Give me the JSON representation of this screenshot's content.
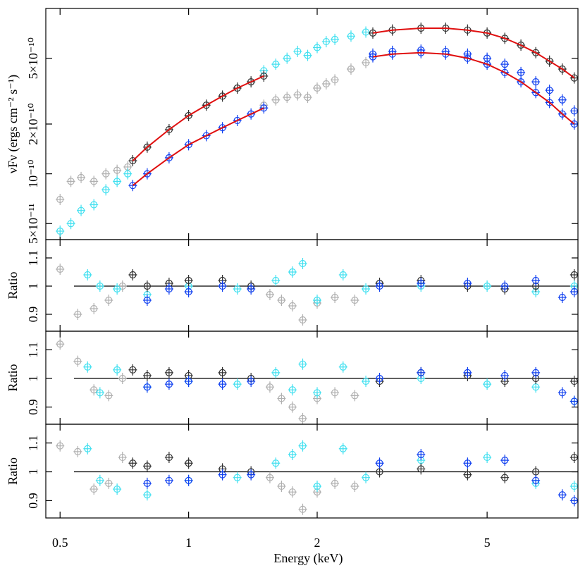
{
  "chart_data": [
    {
      "type": "scatter",
      "ylabel": "νFν (ergs cm⁻² s⁻¹)",
      "xlog": true,
      "ylog": true,
      "xlim": [
        0.463,
        8.16
      ],
      "ylim": [
        4e-11,
        1e-09
      ],
      "yticks": [
        {
          "value": 5e-11,
          "label": "5×10⁻¹¹"
        },
        {
          "value": 1e-10,
          "label": "10⁻¹⁰"
        },
        {
          "value": 2e-10,
          "label": "2×10⁻¹⁰"
        },
        {
          "value": 5e-10,
          "label": "5×10⁻¹⁰"
        }
      ],
      "series": [
        {
          "color": "#b0b0b0",
          "x": [
            0.5,
            0.53,
            0.56,
            0.6,
            0.64,
            0.68,
            0.72,
            1.5,
            1.6,
            1.7,
            1.8,
            1.9,
            2.0,
            2.1,
            2.2,
            2.4,
            2.6
          ],
          "values": [
            7e-11,
            9e-11,
            9.5e-11,
            9e-11,
            1e-10,
            1.05e-10,
            1.1e-10,
            2.6e-10,
            2.8e-10,
            2.9e-10,
            3e-10,
            2.9e-10,
            3.3e-10,
            3.5e-10,
            3.7e-10,
            4.3e-10,
            4.7e-10
          ]
        },
        {
          "color": "#40e0f0",
          "x": [
            0.5,
            0.53,
            0.56,
            0.6,
            0.64,
            0.68,
            0.72,
            1.5,
            1.6,
            1.7,
            1.8,
            1.9,
            2.0,
            2.1,
            2.2,
            2.4,
            2.6
          ],
          "values": [
            4.5e-11,
            5e-11,
            6e-11,
            6.5e-11,
            8e-11,
            9e-11,
            1e-10,
            4.2e-10,
            4.6e-10,
            5e-10,
            5.5e-10,
            5.2e-10,
            5.8e-10,
            6.3e-10,
            6.5e-10,
            6.8e-10,
            7.2e-10
          ]
        },
        {
          "color": "#303030",
          "x": [
            0.74,
            0.8,
            0.9,
            1.0,
            1.1,
            1.2,
            1.3,
            1.4,
            1.5,
            2.7,
            3,
            3.5,
            4,
            4.5,
            5,
            5.5,
            6,
            6.5,
            7,
            7.5,
            8
          ],
          "values": [
            1.2e-10,
            1.45e-10,
            1.85e-10,
            2.25e-10,
            2.6e-10,
            2.95e-10,
            3.3e-10,
            3.6e-10,
            3.9e-10,
            7.1e-10,
            7.4e-10,
            7.6e-10,
            7.6e-10,
            7.4e-10,
            7.1e-10,
            6.6e-10,
            6e-10,
            5.4e-10,
            4.8e-10,
            4.3e-10,
            3.8e-10
          ]
        },
        {
          "color": "#1040f0",
          "x": [
            0.74,
            0.8,
            0.9,
            1.0,
            1.1,
            1.2,
            1.3,
            1.4,
            1.5,
            2.7,
            3,
            3.5,
            4,
            4.5,
            5,
            5.5,
            6,
            6.5,
            7,
            7.5,
            8
          ],
          "values": [
            8.5e-11,
            1e-10,
            1.25e-10,
            1.5e-10,
            1.7e-10,
            1.9e-10,
            2.1e-10,
            2.3e-10,
            2.5e-10,
            5.1e-10,
            5.3e-10,
            5.4e-10,
            5.3e-10,
            5e-10,
            4.6e-10,
            4.1e-10,
            3.6e-10,
            3.1e-10,
            2.7e-10,
            2.3e-10,
            2e-10
          ]
        },
        {
          "color": "#1040f0",
          "x": [
            2.7,
            3,
            3.5,
            4,
            4.5,
            5,
            5.5,
            6,
            6.5,
            7,
            7.5,
            8
          ],
          "values": [
            5.3e-10,
            5.5e-10,
            5.6e-10,
            5.5e-10,
            5.3e-10,
            5e-10,
            4.6e-10,
            4.1e-10,
            3.6e-10,
            3.2e-10,
            2.8e-10,
            2.4e-10
          ]
        },
        {
          "color": "#e01010",
          "style": "line",
          "x": [
            0.74,
            0.8,
            0.9,
            1.0,
            1.1,
            1.2,
            1.3,
            1.4,
            1.5,
            2.0,
            2.7,
            3,
            3.5,
            4,
            4.5,
            5,
            5.5,
            6,
            6.5,
            7,
            7.5,
            8
          ],
          "values": [
            1.2e-10,
            1.45e-10,
            1.85e-10,
            2.25e-10,
            2.6e-10,
            2.95e-10,
            3.3e-10,
            3.6e-10,
            3.9e-10,
            null,
            7.1e-10,
            7.4e-10,
            7.6e-10,
            7.6e-10,
            7.4e-10,
            7.1e-10,
            6.6e-10,
            6e-10,
            5.4e-10,
            4.8e-10,
            4.3e-10,
            3.8e-10
          ]
        },
        {
          "color": "#e01010",
          "style": "line",
          "x": [
            0.74,
            0.8,
            0.9,
            1.0,
            1.1,
            1.2,
            1.3,
            1.4,
            1.5,
            2.0,
            2.7,
            3,
            3.5,
            4,
            4.5,
            5,
            5.5,
            6,
            6.5,
            7,
            7.5,
            8
          ],
          "values": [
            8.5e-11,
            1e-10,
            1.25e-10,
            1.5e-10,
            1.7e-10,
            1.9e-10,
            2.1e-10,
            2.3e-10,
            2.5e-10,
            null,
            5.1e-10,
            5.3e-10,
            5.4e-10,
            5.3e-10,
            5e-10,
            4.6e-10,
            4.1e-10,
            3.6e-10,
            3.1e-10,
            2.7e-10,
            2.3e-10,
            2e-10
          ]
        }
      ]
    },
    {
      "type": "scatter",
      "ylabel": "Ratio",
      "xlog": true,
      "xlim": [
        0.463,
        8.16
      ],
      "ylim": [
        0.84,
        1.165
      ],
      "yticks": [
        0.9,
        1,
        1.1
      ],
      "hline": 1,
      "series": [
        {
          "color": "#b0b0b0",
          "x": [
            0.5,
            0.55,
            0.6,
            0.65,
            0.7,
            1.55,
            1.65,
            1.75,
            1.85,
            2.0,
            2.2,
            2.45
          ],
          "values": [
            1.06,
            0.9,
            0.92,
            0.95,
            1.0,
            0.97,
            0.95,
            0.93,
            0.88,
            0.94,
            0.96,
            0.95
          ]
        },
        {
          "color": "#40e0f0",
          "x": [
            0.58,
            0.62,
            0.68,
            0.8,
            1.0,
            1.3,
            1.6,
            1.75,
            1.85,
            2.0,
            2.3,
            2.6,
            3.5,
            5,
            6.5,
            8
          ],
          "values": [
            1.04,
            1.0,
            0.99,
            0.97,
            1.0,
            0.99,
            1.02,
            1.05,
            1.08,
            0.95,
            1.04,
            0.99,
            1.0,
            1.0,
            0.98,
            1.0
          ]
        },
        {
          "color": "#303030",
          "x": [
            0.74,
            0.8,
            0.9,
            1.0,
            1.2,
            1.4,
            2.8,
            3.5,
            4.5,
            5.5,
            6.5,
            8
          ],
          "values": [
            1.04,
            1.0,
            1.01,
            1.02,
            1.02,
            1.0,
            1.01,
            1.02,
            1.0,
            0.99,
            1.0,
            1.04
          ]
        },
        {
          "color": "#1040f0",
          "x": [
            0.8,
            0.9,
            1.0,
            1.2,
            1.4,
            2.8,
            3.5,
            4.5,
            5.5,
            6.5,
            7.5,
            8
          ],
          "values": [
            0.95,
            0.99,
            0.98,
            1.0,
            0.99,
            1.0,
            1.01,
            1.01,
            1.0,
            1.02,
            0.96,
            0.98
          ]
        }
      ]
    },
    {
      "type": "scatter",
      "ylabel": "Ratio",
      "xlog": true,
      "xlim": [
        0.463,
        8.16
      ],
      "ylim": [
        0.84,
        1.165
      ],
      "yticks": [
        0.9,
        1,
        1.1
      ],
      "hline": 1,
      "series": [
        {
          "color": "#b0b0b0",
          "x": [
            0.5,
            0.55,
            0.6,
            0.65,
            0.7,
            1.55,
            1.65,
            1.75,
            1.85,
            2.0,
            2.2,
            2.45
          ],
          "values": [
            1.12,
            1.06,
            0.96,
            0.94,
            1.0,
            0.97,
            0.93,
            0.9,
            0.86,
            0.93,
            0.95,
            0.94
          ]
        },
        {
          "color": "#40e0f0",
          "x": [
            0.58,
            0.62,
            0.68,
            0.8,
            1.0,
            1.3,
            1.6,
            1.75,
            1.85,
            2.0,
            2.3,
            2.6,
            3.5,
            5,
            6.5,
            8
          ],
          "values": [
            1.04,
            0.95,
            1.03,
            0.97,
            0.99,
            0.98,
            1.02,
            0.96,
            1.05,
            0.95,
            1.04,
            0.99,
            1.0,
            0.98,
            0.97,
            0.92
          ]
        },
        {
          "color": "#303030",
          "x": [
            0.74,
            0.8,
            0.9,
            1.0,
            1.2,
            1.4,
            2.8,
            3.5,
            4.5,
            5.5,
            6.5,
            8
          ],
          "values": [
            1.03,
            1.01,
            1.02,
            1.01,
            1.02,
            1.0,
            0.99,
            1.02,
            1.01,
            0.99,
            1.0,
            0.99
          ]
        },
        {
          "color": "#1040f0",
          "x": [
            0.8,
            0.9,
            1.0,
            1.2,
            1.4,
            2.8,
            3.5,
            4.5,
            5.5,
            6.5,
            7.5,
            8
          ],
          "values": [
            0.97,
            0.98,
            0.99,
            0.98,
            0.99,
            1.0,
            1.02,
            1.02,
            1.01,
            1.02,
            0.95,
            0.92
          ]
        }
      ]
    },
    {
      "type": "scatter",
      "ylabel": "Ratio",
      "xlabel": "Energy (keV)",
      "xlog": true,
      "xlim": [
        0.463,
        8.16
      ],
      "ylim": [
        0.84,
        1.165
      ],
      "yticks": [
        0.9,
        1,
        1.1
      ],
      "xticks": [
        0.5,
        1,
        2,
        5
      ],
      "hline": 1,
      "series": [
        {
          "color": "#b0b0b0",
          "x": [
            0.5,
            0.55,
            0.6,
            0.65,
            0.7,
            1.55,
            1.65,
            1.75,
            1.85,
            2.0,
            2.2,
            2.45
          ],
          "values": [
            1.09,
            1.07,
            0.94,
            0.96,
            1.05,
            0.98,
            0.95,
            0.93,
            0.87,
            0.93,
            0.96,
            0.95
          ]
        },
        {
          "color": "#40e0f0",
          "x": [
            0.58,
            0.62,
            0.68,
            0.8,
            1.0,
            1.3,
            1.6,
            1.75,
            1.85,
            2.0,
            2.3,
            2.6,
            3.5,
            5,
            6.5,
            8
          ],
          "values": [
            1.08,
            0.97,
            0.94,
            0.92,
            0.97,
            0.98,
            1.03,
            1.06,
            1.09,
            0.95,
            1.08,
            0.98,
            1.04,
            1.05,
            0.96,
            0.95
          ]
        },
        {
          "color": "#303030",
          "x": [
            0.74,
            0.8,
            0.9,
            1.0,
            1.2,
            1.4,
            2.8,
            3.5,
            4.5,
            5.5,
            6.5,
            8
          ],
          "values": [
            1.03,
            1.02,
            1.05,
            1.03,
            1.01,
            1.0,
            1.0,
            1.01,
            0.99,
            0.98,
            1.0,
            1.05
          ]
        },
        {
          "color": "#1040f0",
          "x": [
            0.8,
            0.9,
            1.0,
            1.2,
            1.4,
            2.8,
            3.5,
            4.5,
            5.5,
            6.5,
            7.5,
            8
          ],
          "values": [
            0.96,
            0.97,
            0.97,
            0.99,
            0.99,
            1.03,
            1.06,
            1.03,
            1.04,
            0.97,
            0.92,
            0.9
          ]
        }
      ]
    }
  ]
}
